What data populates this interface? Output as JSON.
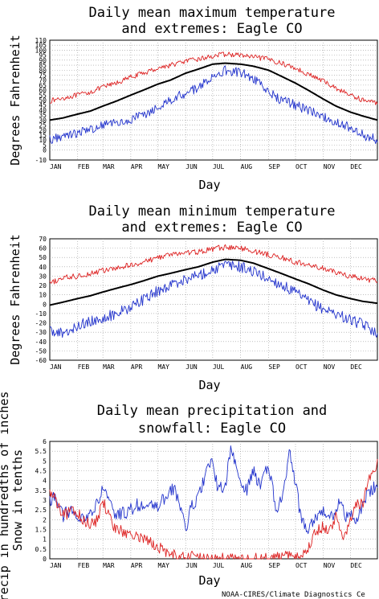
{
  "credit": "NOAA-CIRES/Climate Diagnostics Ce",
  "colors": {
    "mean": "#000000",
    "max_extreme": "#dd2222",
    "min_extreme": "#2233cc",
    "precip": "#2233cc",
    "snow": "#dd2222",
    "grid": "#999999"
  },
  "chart_data": [
    {
      "type": "line",
      "title_lines": [
        "Daily mean maximum temperature",
        "and extremes: Eagle CO"
      ],
      "xlabel": "Day",
      "ylabel": "Degrees Fahrenheit",
      "months": [
        "JAN",
        "FEB",
        "MAR",
        "APR",
        "MAY",
        "JUN",
        "JUL",
        "AUG",
        "SEP",
        "OCT",
        "NOV",
        "DEC"
      ],
      "yticks": [
        -10,
        0,
        5,
        10,
        15,
        20,
        25,
        30,
        35,
        40,
        45,
        50,
        55,
        60,
        65,
        70,
        75,
        80,
        85,
        90,
        95,
        100,
        105,
        110
      ],
      "ylim": [
        -10,
        110
      ],
      "grid": true,
      "series": [
        {
          "key": "extreme_high",
          "color_key": "max_extreme",
          "noise": 2.5,
          "points": [
            [
              1,
              49
            ],
            [
              15,
              52
            ],
            [
              32,
              55
            ],
            [
              46,
              58
            ],
            [
              60,
              63
            ],
            [
              75,
              67
            ],
            [
              91,
              73
            ],
            [
              105,
              77
            ],
            [
              121,
              82
            ],
            [
              135,
              85
            ],
            [
              152,
              89
            ],
            [
              166,
              91
            ],
            [
              182,
              94
            ],
            [
              196,
              96
            ],
            [
              213,
              95
            ],
            [
              227,
              93
            ],
            [
              244,
              91
            ],
            [
              258,
              87
            ],
            [
              274,
              82
            ],
            [
              288,
              76
            ],
            [
              305,
              69
            ],
            [
              319,
              62
            ],
            [
              335,
              55
            ],
            [
              349,
              50
            ],
            [
              365,
              47
            ]
          ]
        },
        {
          "key": "mean",
          "color_key": "mean",
          "noise": 0,
          "points": [
            [
              1,
              30
            ],
            [
              15,
              32
            ],
            [
              32,
              36
            ],
            [
              46,
              39
            ],
            [
              60,
              44
            ],
            [
              75,
              49
            ],
            [
              91,
              55
            ],
            [
              105,
              60
            ],
            [
              121,
              66
            ],
            [
              135,
              70
            ],
            [
              152,
              77
            ],
            [
              166,
              81
            ],
            [
              182,
              86
            ],
            [
              196,
              87
            ],
            [
              213,
              86
            ],
            [
              227,
              84
            ],
            [
              244,
              80
            ],
            [
              258,
              74
            ],
            [
              274,
              67
            ],
            [
              288,
              60
            ],
            [
              305,
              51
            ],
            [
              319,
              44
            ],
            [
              335,
              38
            ],
            [
              349,
              34
            ],
            [
              365,
              30
            ]
          ]
        },
        {
          "key": "extreme_low",
          "color_key": "min_extreme",
          "noise": 5,
          "points": [
            [
              1,
              10
            ],
            [
              15,
              15
            ],
            [
              32,
              17
            ],
            [
              46,
              21
            ],
            [
              60,
              25
            ],
            [
              75,
              27
            ],
            [
              91,
              31
            ],
            [
              105,
              35
            ],
            [
              121,
              44
            ],
            [
              135,
              50
            ],
            [
              152,
              57
            ],
            [
              166,
              63
            ],
            [
              182,
              75
            ],
            [
              196,
              80
            ],
            [
              213,
              78
            ],
            [
              227,
              72
            ],
            [
              244,
              58
            ],
            [
              258,
              50
            ],
            [
              274,
              45
            ],
            [
              288,
              40
            ],
            [
              305,
              33
            ],
            [
              319,
              28
            ],
            [
              335,
              22
            ],
            [
              349,
              15
            ],
            [
              365,
              10
            ]
          ]
        }
      ]
    },
    {
      "type": "line",
      "title_lines": [
        "Daily mean minimum temperature",
        "and extremes: Eagle CO"
      ],
      "xlabel": "Day",
      "ylabel": "Degrees Fahrenheit",
      "months": [
        "JAN",
        "FEB",
        "MAR",
        "APR",
        "MAY",
        "JUN",
        "JUL",
        "AUG",
        "SEP",
        "OCT",
        "NOV",
        "DEC"
      ],
      "yticks": [
        -60,
        -50,
        -40,
        -30,
        -20,
        -10,
        0,
        10,
        20,
        30,
        40,
        50,
        60,
        70
      ],
      "ylim": [
        -60,
        70
      ],
      "grid": true,
      "series": [
        {
          "key": "extreme_high",
          "color_key": "max_extreme",
          "noise": 3,
          "points": [
            [
              1,
              22
            ],
            [
              15,
              28
            ],
            [
              32,
              30
            ],
            [
              46,
              33
            ],
            [
              60,
              36
            ],
            [
              75,
              38
            ],
            [
              91,
              42
            ],
            [
              105,
              45
            ],
            [
              121,
              50
            ],
            [
              135,
              53
            ],
            [
              152,
              55
            ],
            [
              166,
              56
            ],
            [
              182,
              59
            ],
            [
              196,
              61
            ],
            [
              213,
              60
            ],
            [
              227,
              57
            ],
            [
              244,
              53
            ],
            [
              258,
              50
            ],
            [
              274,
              45
            ],
            [
              288,
              42
            ],
            [
              305,
              38
            ],
            [
              319,
              34
            ],
            [
              335,
              30
            ],
            [
              349,
              27
            ],
            [
              365,
              25
            ]
          ]
        },
        {
          "key": "mean",
          "color_key": "mean",
          "noise": 0,
          "points": [
            [
              1,
              -1
            ],
            [
              15,
              2
            ],
            [
              32,
              6
            ],
            [
              46,
              9
            ],
            [
              60,
              13
            ],
            [
              75,
              17
            ],
            [
              91,
              21
            ],
            [
              105,
              25
            ],
            [
              121,
              30
            ],
            [
              135,
              33
            ],
            [
              152,
              37
            ],
            [
              166,
              40
            ],
            [
              182,
              45
            ],
            [
              196,
              48
            ],
            [
              213,
              47
            ],
            [
              227,
              44
            ],
            [
              244,
              38
            ],
            [
              258,
              33
            ],
            [
              274,
              27
            ],
            [
              288,
              22
            ],
            [
              305,
              15
            ],
            [
              319,
              10
            ],
            [
              335,
              6
            ],
            [
              349,
              3
            ],
            [
              365,
              1
            ]
          ]
        },
        {
          "key": "extreme_low",
          "color_key": "min_extreme",
          "noise": 6,
          "points": [
            [
              1,
              -28
            ],
            [
              15,
              -32
            ],
            [
              32,
              -22
            ],
            [
              46,
              -18
            ],
            [
              60,
              -15
            ],
            [
              75,
              -10
            ],
            [
              91,
              -3
            ],
            [
              105,
              5
            ],
            [
              121,
              14
            ],
            [
              135,
              20
            ],
            [
              152,
              27
            ],
            [
              166,
              31
            ],
            [
              182,
              37
            ],
            [
              196,
              42
            ],
            [
              213,
              40
            ],
            [
              227,
              35
            ],
            [
              244,
              27
            ],
            [
              258,
              21
            ],
            [
              274,
              12
            ],
            [
              288,
              3
            ],
            [
              305,
              -5
            ],
            [
              319,
              -10
            ],
            [
              335,
              -17
            ],
            [
              349,
              -22
            ],
            [
              365,
              -30
            ]
          ]
        }
      ]
    },
    {
      "type": "line",
      "title_lines": [
        "Daily mean precipitation and",
        "snowfall: Eagle CO"
      ],
      "xlabel": "Day",
      "ylabel_lines": [
        "Precip in hundredths of inches",
        "Snow in tenths"
      ],
      "months": [
        "JAN",
        "FEB",
        "MAR",
        "APR",
        "MAY",
        "JUN",
        "JUL",
        "AUG",
        "SEP",
        "OCT",
        "NOV",
        "DEC"
      ],
      "yticks": [
        0,
        0.5,
        1,
        1.5,
        2,
        2.5,
        3,
        3.5,
        4,
        4.5,
        5,
        5.5,
        6
      ],
      "ylim": [
        0,
        6
      ],
      "grid": true,
      "series": [
        {
          "key": "precip",
          "color_key": "precip",
          "noise": 0.35,
          "points": [
            [
              1,
              3.0
            ],
            [
              8,
              3.2
            ],
            [
              15,
              2.2
            ],
            [
              25,
              2.5
            ],
            [
              32,
              1.8
            ],
            [
              40,
              2.2
            ],
            [
              50,
              2.4
            ],
            [
              60,
              3.6
            ],
            [
              67,
              2.8
            ],
            [
              75,
              2.2
            ],
            [
              91,
              2.5
            ],
            [
              100,
              2.8
            ],
            [
              110,
              2.6
            ],
            [
              121,
              2.7
            ],
            [
              130,
              3.2
            ],
            [
              140,
              3.6
            ],
            [
              147,
              2.5
            ],
            [
              152,
              1.5
            ],
            [
              158,
              2.6
            ],
            [
              166,
              3.1
            ],
            [
              175,
              4.5
            ],
            [
              182,
              4.9
            ],
            [
              188,
              3.5
            ],
            [
              196,
              3.8
            ],
            [
              203,
              5.7
            ],
            [
              210,
              4.2
            ],
            [
              220,
              3.4
            ],
            [
              227,
              4.6
            ],
            [
              235,
              3.6
            ],
            [
              240,
              4.8
            ],
            [
              247,
              4.1
            ],
            [
              253,
              2.3
            ],
            [
              260,
              3.3
            ],
            [
              267,
              5.5
            ],
            [
              274,
              3.9
            ],
            [
              280,
              2.1
            ],
            [
              288,
              1.6
            ],
            [
              295,
              2.1
            ],
            [
              305,
              2.6
            ],
            [
              312,
              1.9
            ],
            [
              319,
              2.6
            ],
            [
              325,
              3.2
            ],
            [
              330,
              2.0
            ],
            [
              335,
              2.4
            ],
            [
              340,
              1.6
            ],
            [
              349,
              2.9
            ],
            [
              357,
              3.4
            ],
            [
              365,
              3.8
            ]
          ]
        },
        {
          "key": "snow",
          "color_key": "snow",
          "noise": 0.3,
          "points": [
            [
              1,
              3.4
            ],
            [
              8,
              3.0
            ],
            [
              15,
              2.2
            ],
            [
              25,
              2.4
            ],
            [
              32,
              2.4
            ],
            [
              38,
              2.0
            ],
            [
              46,
              1.7
            ],
            [
              54,
              2.0
            ],
            [
              60,
              3.0
            ],
            [
              68,
              2.0
            ],
            [
              75,
              1.5
            ],
            [
              85,
              1.4
            ],
            [
              95,
              1.1
            ],
            [
              105,
              1.0
            ],
            [
              121,
              0.6
            ],
            [
              135,
              0.3
            ],
            [
              145,
              0.1
            ],
            [
              152,
              0.0
            ],
            [
              160,
              0.2
            ],
            [
              170,
              0.1
            ],
            [
              182,
              0.0
            ],
            [
              213,
              0.0
            ],
            [
              244,
              0.0
            ],
            [
              258,
              0.1
            ],
            [
              270,
              0.2
            ],
            [
              280,
              0.1
            ],
            [
              288,
              0.6
            ],
            [
              296,
              1.3
            ],
            [
              305,
              1.7
            ],
            [
              312,
              1.4
            ],
            [
              319,
              2.2
            ],
            [
              328,
              0.9
            ],
            [
              335,
              2.1
            ],
            [
              342,
              2.7
            ],
            [
              349,
              2.9
            ],
            [
              357,
              4.2
            ],
            [
              365,
              4.8
            ]
          ]
        }
      ]
    }
  ]
}
